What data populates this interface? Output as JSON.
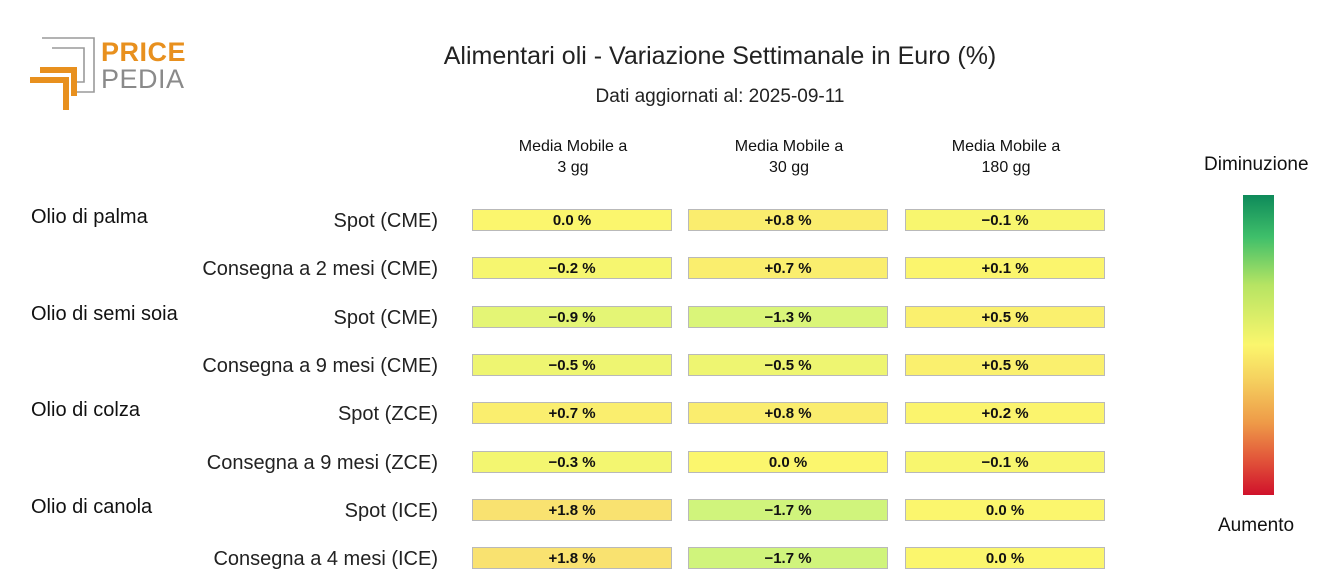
{
  "logo": {
    "word_top": "PRICE",
    "word_bottom": "PEDIA",
    "brand_color": "#e8901e"
  },
  "chart_data": {
    "type": "heatmap",
    "title": "Alimentari oli - Variazione Settimanale in Euro (%)",
    "subtitle": "Dati aggiornati al: 2025-09-11",
    "columns": [
      {
        "line1": "Media Mobile a",
        "line2": "3 gg"
      },
      {
        "line1": "Media Mobile a",
        "line2": "30 gg"
      },
      {
        "line1": "Media Mobile a",
        "line2": "180 gg"
      }
    ],
    "rows": [
      {
        "group": "Olio di palma",
        "label": "Spot (CME)",
        "values": [
          0.0,
          0.8,
          -0.1
        ]
      },
      {
        "group": "",
        "label": "Consegna a 2 mesi (CME)",
        "values": [
          -0.2,
          0.7,
          0.1
        ]
      },
      {
        "group": "Olio di semi soia",
        "label": "Spot (CME)",
        "values": [
          -0.9,
          -1.3,
          0.5
        ]
      },
      {
        "group": "",
        "label": "Consegna a 9 mesi (CME)",
        "values": [
          -0.5,
          -0.5,
          0.5
        ]
      },
      {
        "group": "Olio di colza",
        "label": "Spot (ZCE)",
        "values": [
          0.7,
          0.8,
          0.2
        ]
      },
      {
        "group": "",
        "label": "Consegna a 9 mesi (ZCE)",
        "values": [
          -0.3,
          0.0,
          -0.1
        ]
      },
      {
        "group": "Olio di canola",
        "label": "Spot (ICE)",
        "values": [
          1.8,
          -1.7,
          0.0
        ]
      },
      {
        "group": "",
        "label": "Consegna a 4 mesi (ICE)",
        "values": [
          1.8,
          -1.7,
          0.0
        ]
      }
    ],
    "value_suffix": " %",
    "legend": {
      "top_label": "Diminuzione",
      "bottom_label": "Aumento",
      "position": "right"
    },
    "colors": {
      "decrease": "#0e8a5a",
      "neutral": "#fbf66d",
      "increase": "#d0112b"
    }
  }
}
